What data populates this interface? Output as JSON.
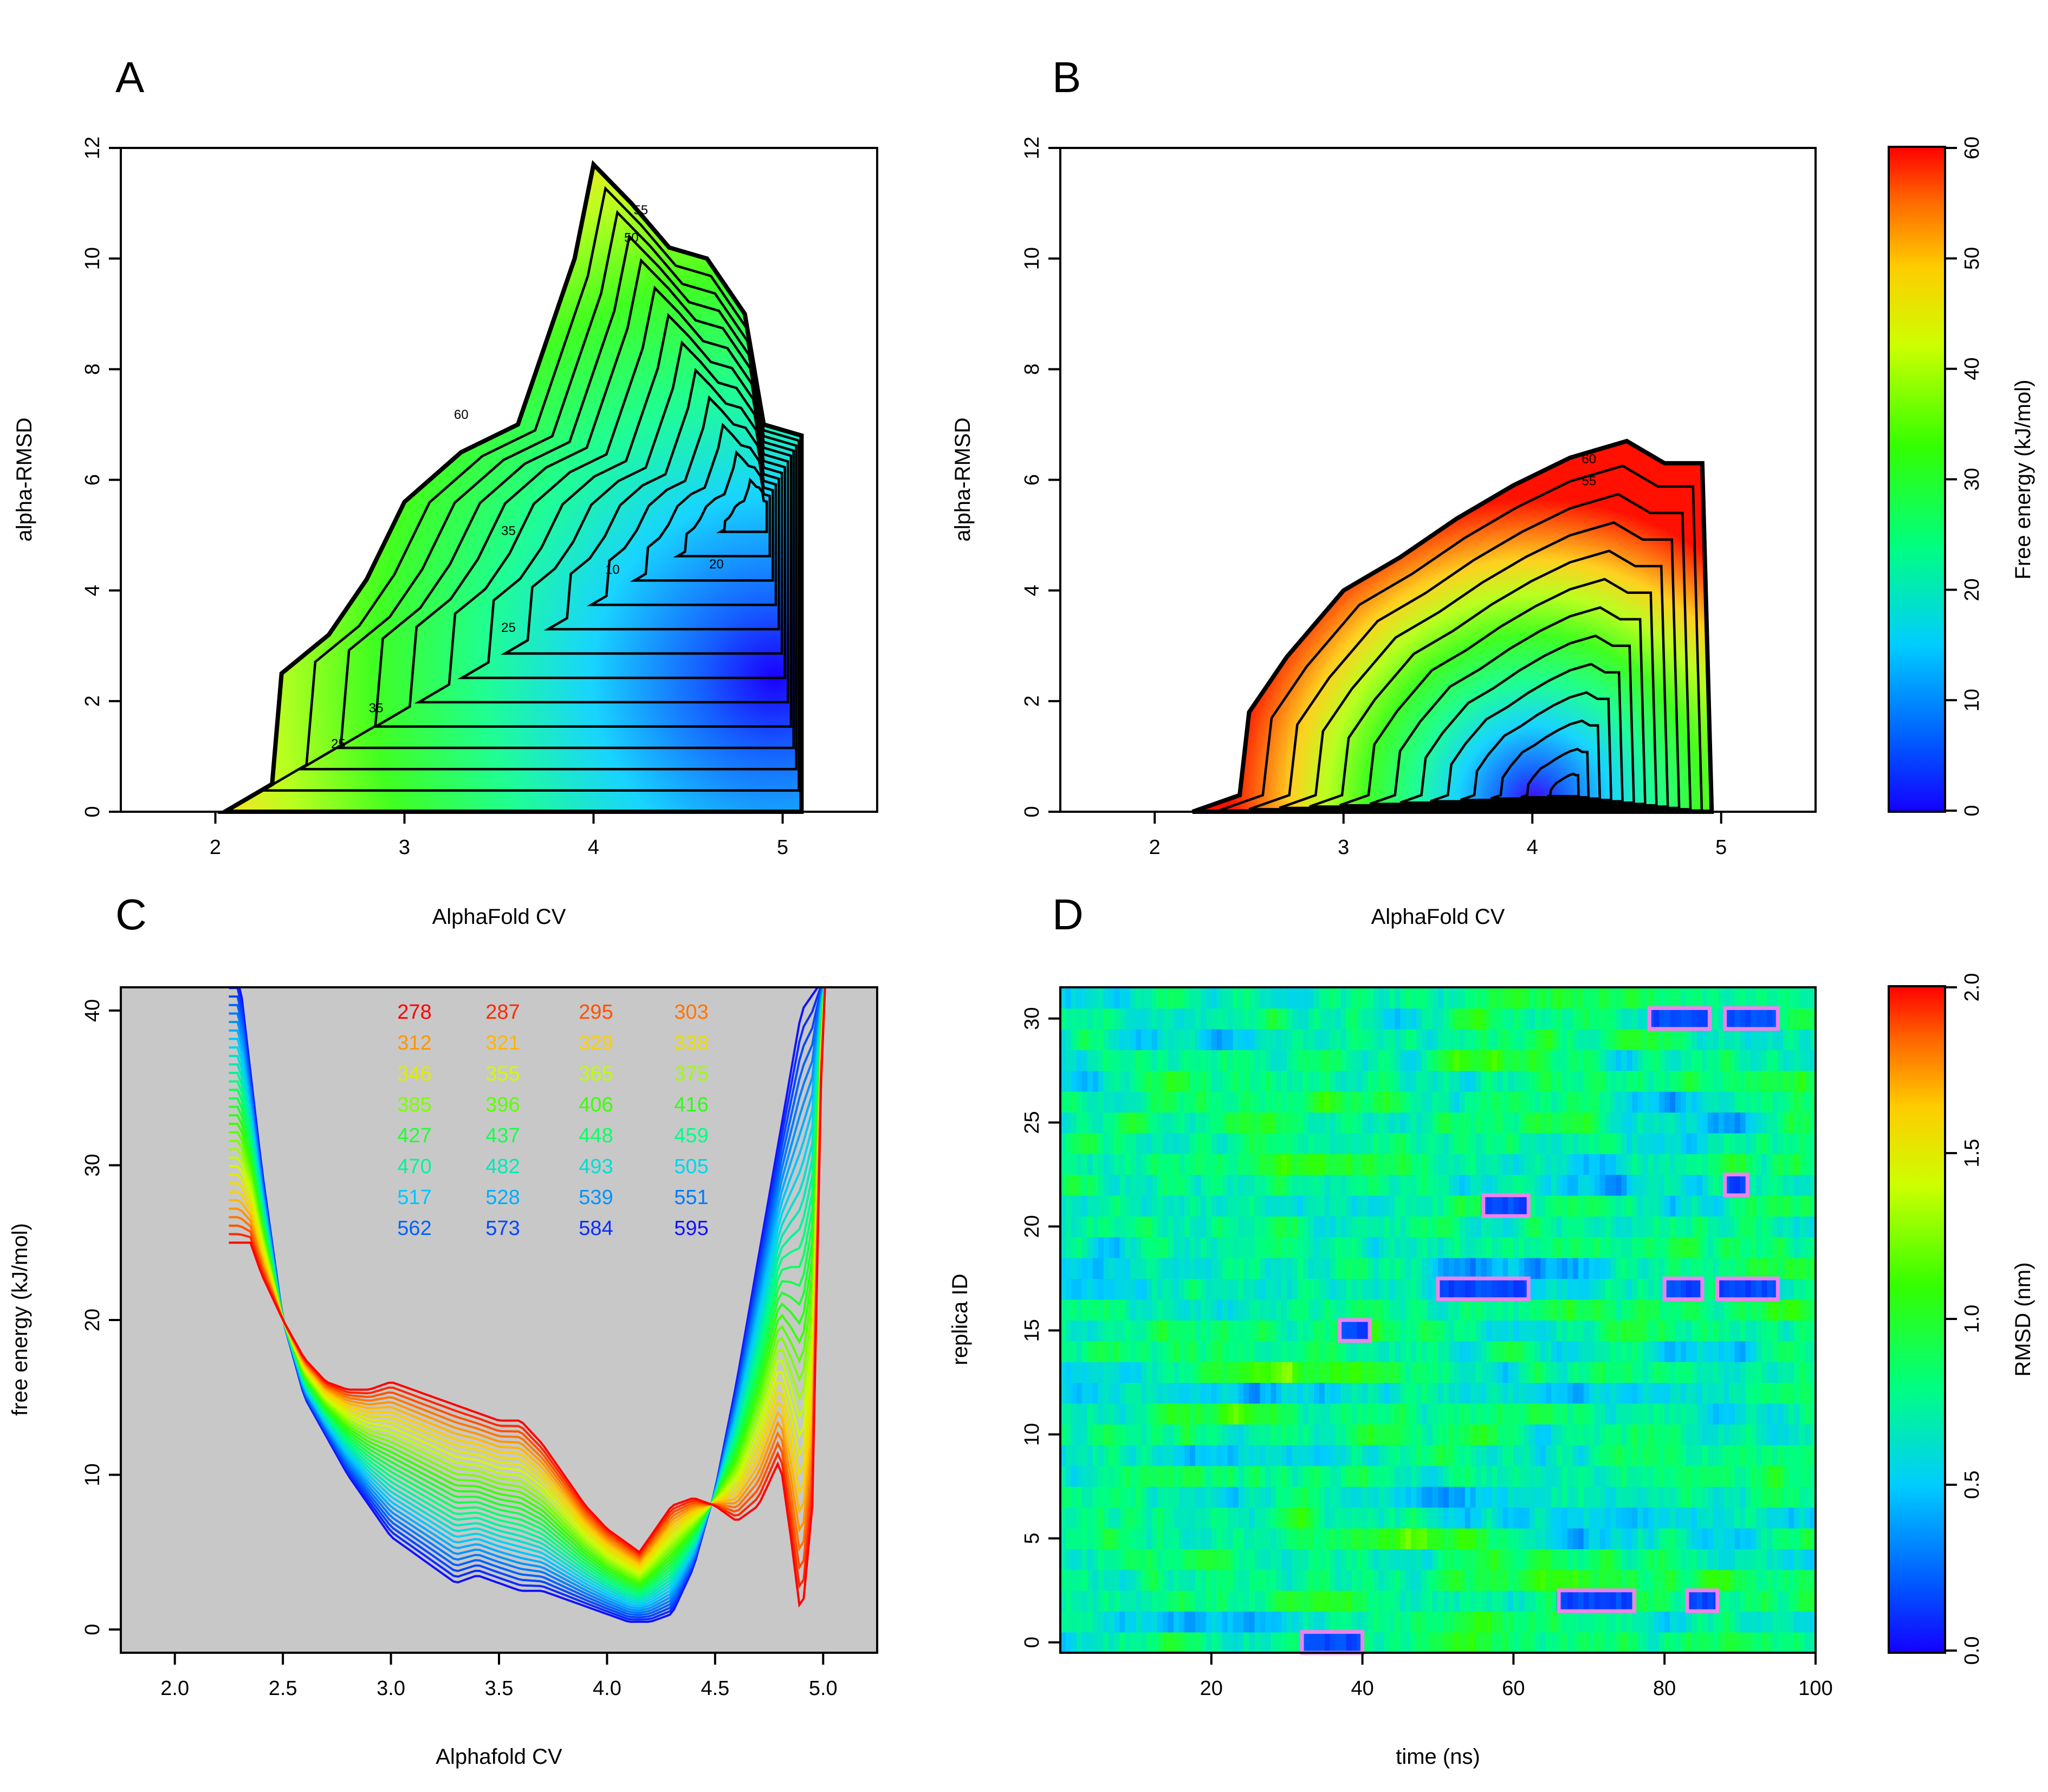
{
  "chart_data": [
    {
      "panel": "A",
      "type": "heatmap",
      "title": "",
      "xlabel": "AlphaFold CV",
      "ylabel": "alpha-RMSD",
      "xlim": [
        1.5,
        5.5
      ],
      "ylim": [
        0,
        12
      ],
      "xticks": [
        2,
        3,
        4,
        5
      ],
      "yticks": [
        0,
        2,
        4,
        6,
        8,
        10,
        12
      ],
      "contour_labels": [
        "55",
        "50",
        "60",
        "35",
        "25",
        "10",
        "20",
        "35",
        "25"
      ],
      "upper_boundary": [
        [
          2.05,
          0
        ],
        [
          2.3,
          0.5
        ],
        [
          2.35,
          2.5
        ],
        [
          2.6,
          3.2
        ],
        [
          2.8,
          4.2
        ],
        [
          3.0,
          5.6
        ],
        [
          3.3,
          6.5
        ],
        [
          3.6,
          7.0
        ],
        [
          3.75,
          8.5
        ],
        [
          3.9,
          10.0
        ],
        [
          4.0,
          11.7
        ],
        [
          4.2,
          11.0
        ],
        [
          4.4,
          10.2
        ],
        [
          4.6,
          10.0
        ],
        [
          4.8,
          9.0
        ],
        [
          4.9,
          7.0
        ],
        [
          5.1,
          6.8
        ],
        [
          5.1,
          0
        ]
      ],
      "minimum": {
        "x": 4.9,
        "y": 5.5
      }
    },
    {
      "panel": "B",
      "type": "heatmap",
      "title": "",
      "xlabel": "AlphaFold CV",
      "ylabel": "alpha-RMSD",
      "xlim": [
        1.5,
        5.5
      ],
      "ylim": [
        0,
        12
      ],
      "xticks": [
        2,
        3,
        4,
        5
      ],
      "yticks": [
        0,
        2,
        4,
        6,
        8,
        10,
        12
      ],
      "contour_labels": [
        "60",
        "55"
      ],
      "upper_boundary": [
        [
          2.2,
          0
        ],
        [
          2.45,
          0.3
        ],
        [
          2.5,
          1.8
        ],
        [
          2.7,
          2.8
        ],
        [
          3.0,
          4.0
        ],
        [
          3.3,
          4.6
        ],
        [
          3.6,
          5.3
        ],
        [
          3.9,
          5.9
        ],
        [
          4.2,
          6.4
        ],
        [
          4.5,
          6.7
        ],
        [
          4.7,
          6.3
        ],
        [
          4.9,
          6.3
        ],
        [
          4.95,
          0
        ]
      ],
      "minimum": {
        "x": 4.2,
        "y": 0.3
      }
    },
    {
      "panel": "C",
      "type": "line",
      "title": "",
      "xlabel": "Alphafold CV",
      "ylabel": "free energy (kJ/mol)",
      "xlim": [
        1.75,
        5.25
      ],
      "ylim": [
        -1.5,
        41.5
      ],
      "xticks": [
        2.0,
        2.5,
        3.0,
        3.5,
        4.0,
        4.5,
        5.0
      ],
      "xtick_labels": [
        "2.0",
        "2.5",
        "3.0",
        "3.5",
        "4.0",
        "4.5",
        "5.0"
      ],
      "yticks": [
        0,
        10,
        20,
        30,
        40
      ],
      "legend": [
        "278",
        "287",
        "295",
        "303",
        "312",
        "321",
        "329",
        "338",
        "346",
        "355",
        "365",
        "375",
        "385",
        "396",
        "406",
        "416",
        "427",
        "437",
        "448",
        "459",
        "470",
        "482",
        "493",
        "505",
        "517",
        "528",
        "539",
        "551",
        "562",
        "573",
        "584",
        "595"
      ],
      "series_low": {
        "name": "278",
        "x": [
          2.35,
          2.4,
          2.5,
          2.6,
          2.7,
          2.8,
          2.9,
          3.0,
          3.1,
          3.2,
          3.3,
          3.4,
          3.5,
          3.6,
          3.7,
          3.8,
          3.9,
          4.0,
          4.1,
          4.15,
          4.2,
          4.3,
          4.4,
          4.5,
          4.6,
          4.7,
          4.8,
          4.85,
          4.9,
          4.95,
          5.0
        ],
        "y": [
          25,
          23,
          20,
          17.5,
          16,
          15.5,
          15.5,
          16,
          15.5,
          15,
          14.5,
          14,
          13.5,
          13.5,
          12,
          10,
          8,
          6.5,
          5.5,
          5,
          6,
          8,
          8.5,
          8,
          7,
          8,
          11,
          6,
          0.5,
          8,
          42
        ]
      },
      "series_high": {
        "name": "595",
        "x": [
          2.3,
          2.4,
          2.5,
          2.6,
          2.7,
          2.8,
          2.9,
          3.0,
          3.1,
          3.2,
          3.3,
          3.4,
          3.5,
          3.6,
          3.7,
          3.8,
          3.9,
          4.0,
          4.1,
          4.2,
          4.3,
          4.4,
          4.5,
          4.6,
          4.7,
          4.8,
          4.9,
          5.0
        ],
        "y": [
          42,
          30,
          20,
          15,
          12.5,
          10,
          8,
          6,
          5,
          4,
          3,
          3.5,
          3,
          2.5,
          2.5,
          2,
          1.5,
          1,
          0.5,
          0.5,
          1,
          4,
          9,
          16,
          24,
          32,
          40,
          42
        ]
      }
    },
    {
      "panel": "D",
      "type": "heatmap",
      "title": "",
      "xlabel": "time (ns)",
      "ylabel": "replica ID",
      "xlim": [
        0,
        100
      ],
      "ylim": [
        -0.5,
        31.5
      ],
      "xticks": [
        20,
        40,
        60,
        80,
        100
      ],
      "yticks": [
        0,
        5,
        10,
        15,
        20,
        25,
        30
      ],
      "highlight_boxes": [
        {
          "replica": 30,
          "t_start": 78,
          "t_end": 86
        },
        {
          "replica": 30,
          "t_start": 88,
          "t_end": 95
        },
        {
          "replica": 22,
          "t_start": 88,
          "t_end": 91
        },
        {
          "replica": 21,
          "t_start": 56,
          "t_end": 62
        },
        {
          "replica": 17,
          "t_start": 50,
          "t_end": 62
        },
        {
          "replica": 17,
          "t_start": 80,
          "t_end": 85
        },
        {
          "replica": 17,
          "t_start": 87,
          "t_end": 95
        },
        {
          "replica": 15,
          "t_start": 37,
          "t_end": 41
        },
        {
          "replica": 2,
          "t_start": 66,
          "t_end": 76
        },
        {
          "replica": 2,
          "t_start": 83,
          "t_end": 87
        },
        {
          "replica": 0,
          "t_start": 32,
          "t_end": 40
        }
      ]
    }
  ],
  "colorbars": [
    {
      "label": "Free energy (kJ/mol)",
      "min": 0,
      "max": 60,
      "ticks": [
        "0",
        "10",
        "20",
        "30",
        "40",
        "50",
        "60"
      ]
    },
    {
      "label": "RMSD (nm)",
      "min": 0,
      "max": 2,
      "ticks": [
        "0.0",
        "0.5",
        "1.0",
        "1.5",
        "2.0"
      ]
    }
  ],
  "panel_letters": [
    "A",
    "B",
    "C",
    "D"
  ],
  "colors": {
    "outline": "#000000",
    "panel_c_background": "#c8c8c8",
    "highlight_box": "#ee82ee"
  }
}
